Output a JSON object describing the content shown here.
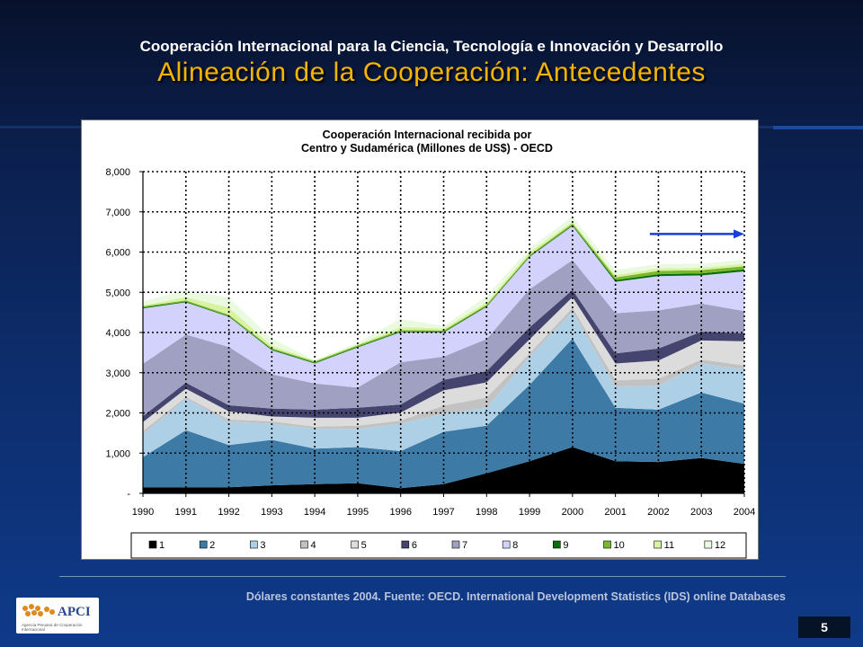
{
  "header": {
    "line1": "Cooperación Internacional para la Ciencia, Tecnología e Innovación y Desarrollo",
    "line2": "Alineación de la Cooperación: Antecedentes"
  },
  "footer": {
    "note": "Dólares constantes 2004. Fuente: OECD. International Development Statistics (IDS) online Databases",
    "page_number": "5"
  },
  "logo": {
    "name": "APCI",
    "subtitle": "Agencia Peruana de Cooperación Internacional"
  },
  "chart_data": {
    "type": "area",
    "stacked": true,
    "title": [
      "Cooperación Internacional recibida por",
      "Centro y Sudamérica (Millones de US$) - OECD"
    ],
    "xlabel": "",
    "ylabel": "",
    "x": [
      "1990",
      "1991",
      "1992",
      "1993",
      "1994",
      "1995",
      "1996",
      "1997",
      "1998",
      "1999",
      "2000",
      "2001",
      "2002",
      "2003",
      "2004"
    ],
    "ylim": [
      0,
      8000
    ],
    "yticks": [
      {
        "value": 0,
        "label": "-"
      },
      {
        "value": 1000,
        "label": "1,000"
      },
      {
        "value": 2000,
        "label": "2,000"
      },
      {
        "value": 3000,
        "label": "3,000"
      },
      {
        "value": 4000,
        "label": "4,000"
      },
      {
        "value": 5000,
        "label": "5,000"
      },
      {
        "value": 6000,
        "label": "6,000"
      },
      {
        "value": 7000,
        "label": "7,000"
      },
      {
        "value": 8000,
        "label": "8,000"
      }
    ],
    "grid": true,
    "legend_position": "bottom",
    "series": [
      {
        "name": "1",
        "color": "#000000",
        "values": [
          150,
          150,
          150,
          200,
          230,
          250,
          130,
          230,
          500,
          800,
          1150,
          800,
          780,
          880,
          730
        ]
      },
      {
        "name": "2",
        "color": "#3d7aa6",
        "values": [
          750,
          1420,
          1050,
          1130,
          880,
          900,
          920,
          1300,
          1180,
          1900,
          2700,
          1330,
          1300,
          1630,
          1500
        ]
      },
      {
        "name": "3",
        "color": "#aed0e6",
        "values": [
          570,
          780,
          580,
          400,
          500,
          450,
          680,
          450,
          450,
          700,
          670,
          530,
          600,
          720,
          850
        ]
      },
      {
        "name": "4",
        "color": "#c2c2c2",
        "values": [
          80,
          50,
          60,
          60,
          50,
          80,
          80,
          200,
          250,
          80,
          100,
          150,
          170,
          100,
          100
        ]
      },
      {
        "name": "5",
        "color": "#dcdcdc",
        "values": [
          220,
          200,
          200,
          120,
          220,
          200,
          200,
          380,
          380,
          350,
          260,
          420,
          450,
          470,
          600
        ]
      },
      {
        "name": "6",
        "color": "#44446e",
        "values": [
          150,
          150,
          150,
          200,
          200,
          250,
          200,
          260,
          280,
          300,
          180,
          250,
          300,
          220,
          200
        ]
      },
      {
        "name": "7",
        "color": "#a0a0c2",
        "values": [
          1300,
          1200,
          1450,
          850,
          650,
          500,
          1050,
          580,
          800,
          950,
          740,
          1000,
          950,
          700,
          550
        ]
      },
      {
        "name": "8",
        "color": "#d2d2fc",
        "values": [
          1380,
          800,
          750,
          600,
          500,
          1000,
          750,
          600,
          800,
          800,
          850,
          780,
          850,
          700,
          990
        ]
      },
      {
        "name": "9",
        "color": "#0a6e0a",
        "values": [
          20,
          20,
          20,
          20,
          20,
          20,
          20,
          20,
          20,
          20,
          20,
          40,
          50,
          50,
          50
        ]
      },
      {
        "name": "10",
        "color": "#7ab830",
        "values": [
          30,
          30,
          30,
          30,
          30,
          30,
          30,
          30,
          30,
          30,
          40,
          70,
          80,
          80,
          80
        ]
      },
      {
        "name": "11",
        "color": "#d8f2a0",
        "values": [
          20,
          80,
          180,
          60,
          20,
          20,
          80,
          50,
          60,
          70,
          50,
          60,
          60,
          60,
          60
        ]
      },
      {
        "name": "12",
        "color": "#eafae0",
        "values": [
          100,
          180,
          250,
          180,
          10,
          50,
          200,
          60,
          150,
          100,
          120,
          120,
          110,
          100,
          100
        ]
      }
    ],
    "annotation": {
      "type": "arrow",
      "color": "#1a3fd6",
      "from": {
        "x": "2001.8",
        "y": 6450
      },
      "to": {
        "x": "2004",
        "y": 6450
      }
    }
  }
}
